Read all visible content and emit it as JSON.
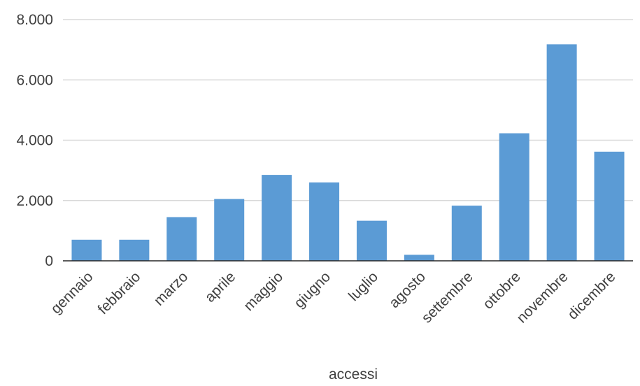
{
  "chart_data": {
    "type": "bar",
    "categories": [
      "gennaio",
      "febbraio",
      "marzo",
      "aprile",
      "maggio",
      "giugno",
      "luglio",
      "agosto",
      "settembre",
      "ottobre",
      "novembre",
      "dicembre"
    ],
    "series": [
      {
        "values": [
          700,
          700,
          1450,
          2050,
          2850,
          2600,
          1330,
          200,
          1830,
          4230,
          7180,
          3620
        ]
      }
    ],
    "ylim": [
      0,
      8000
    ],
    "yticks": [
      "0",
      "2.000",
      "4.000",
      "6.000",
      "8.000"
    ],
    "xlabel": "accessi",
    "ylabel": "",
    "title": "",
    "grid": true,
    "bar_color": "#5B9BD5",
    "grid_color": "#D9D9D9",
    "axis_color": "#262626"
  }
}
